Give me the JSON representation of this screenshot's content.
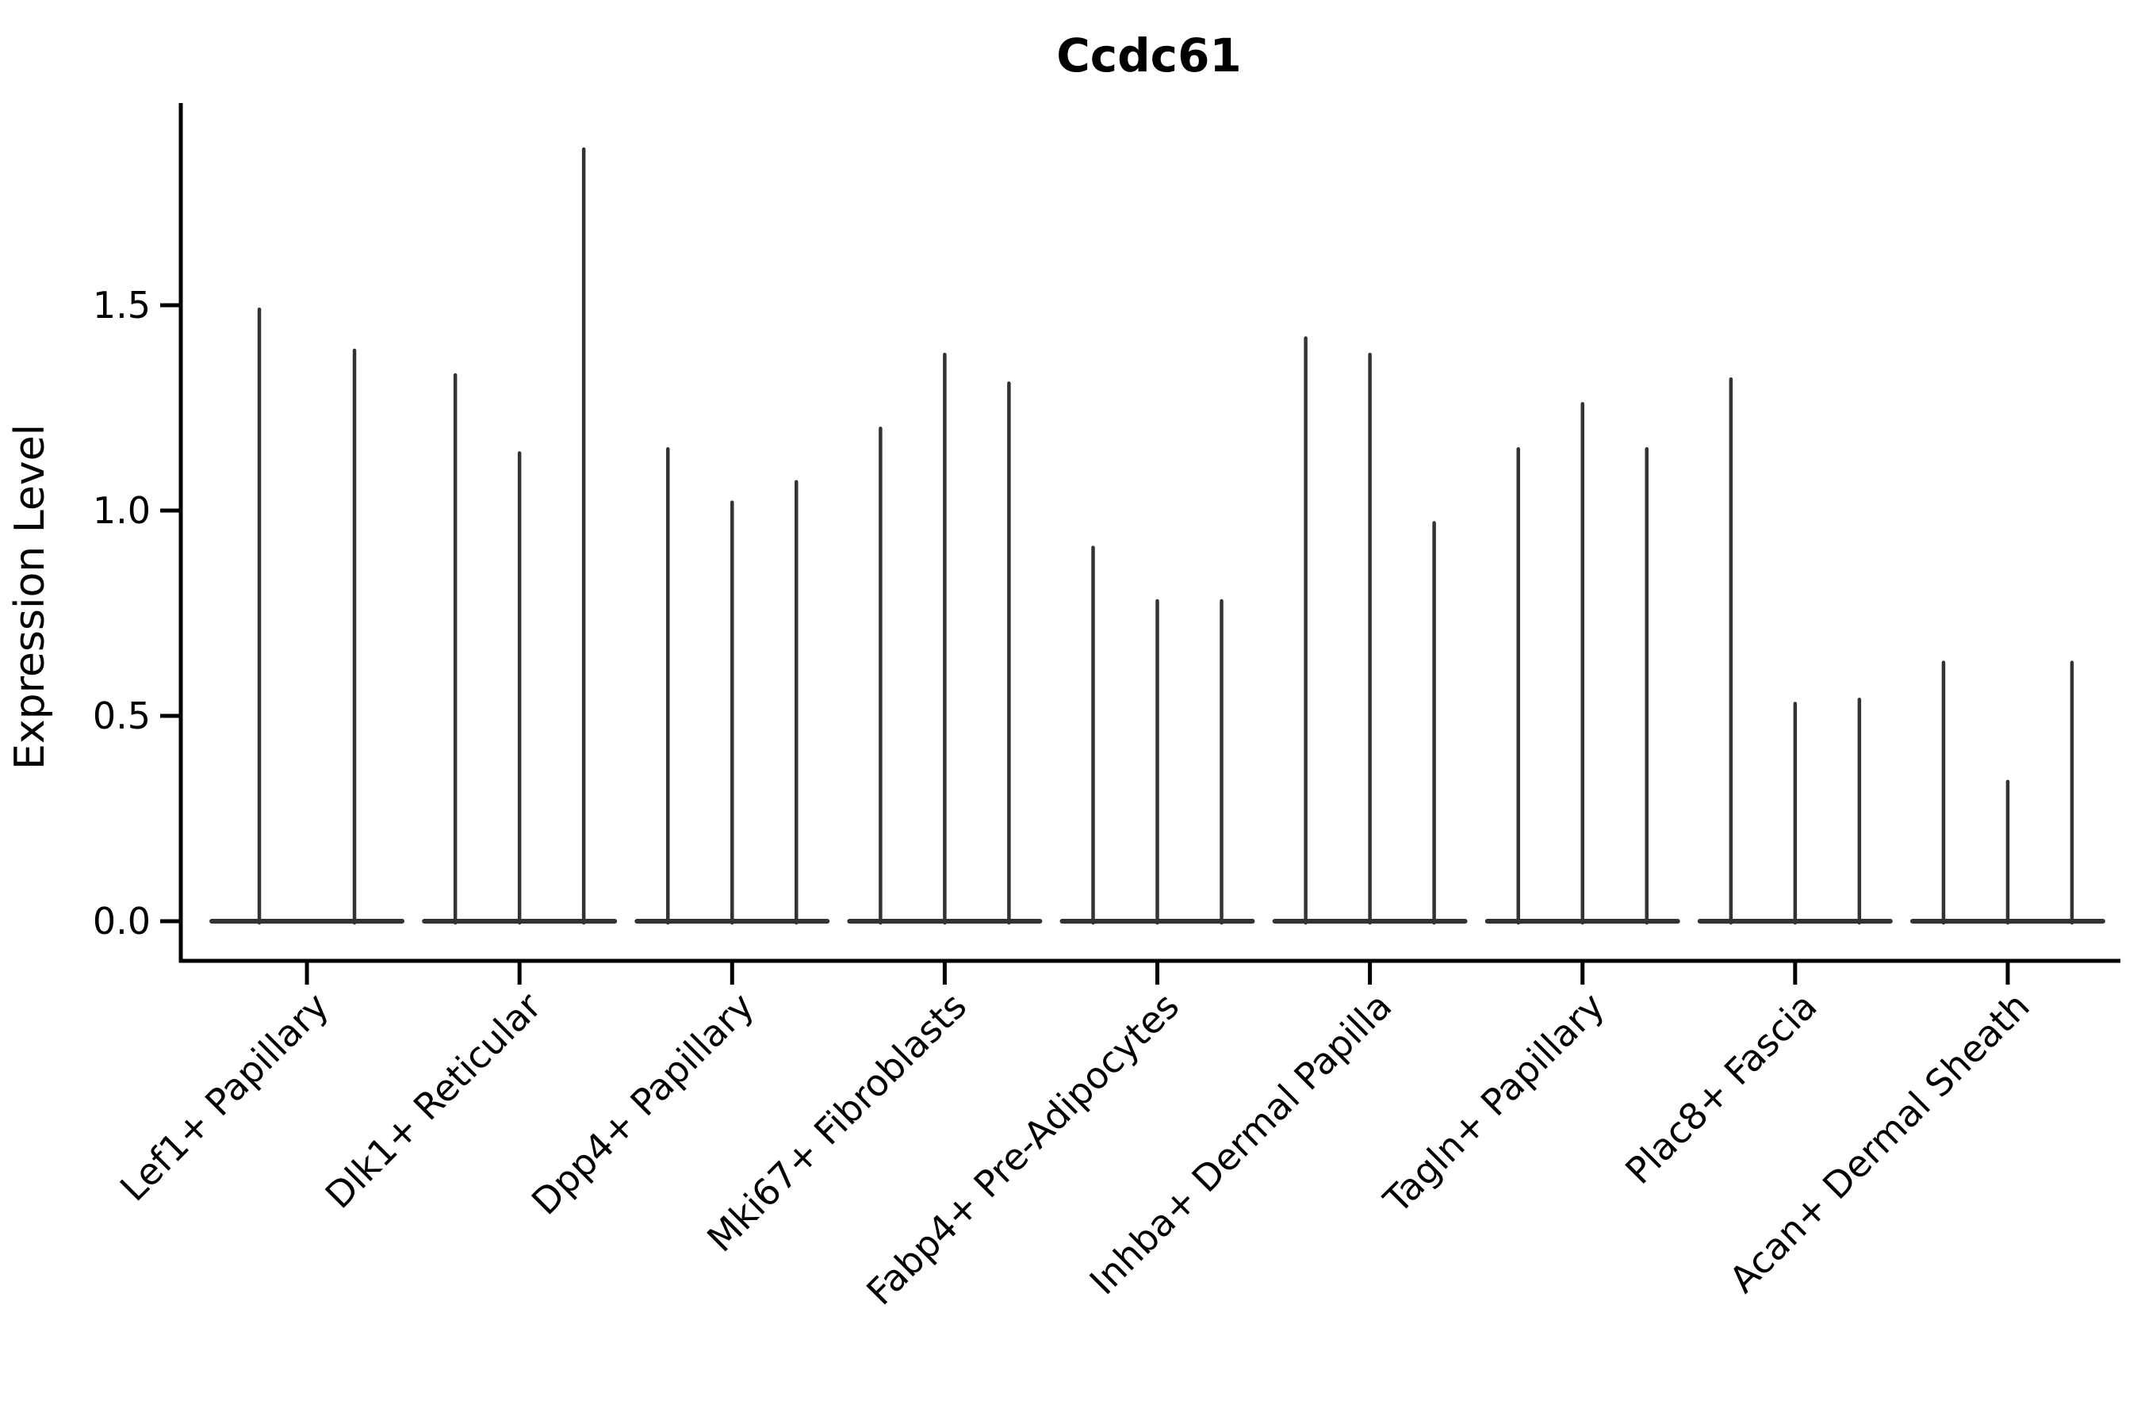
{
  "title": "Ccdc61",
  "colors": {
    "ink": "#000000",
    "violin_stroke": "#333333",
    "background": "#ffffff"
  },
  "chart_data": {
    "type": "violin",
    "title": "Ccdc61",
    "xlabel": "",
    "ylabel": "Expression Level",
    "ylim": [
      0,
      1.96
    ],
    "yticks": [
      0.0,
      0.5,
      1.0,
      1.5
    ],
    "ytick_labels": [
      "0.0",
      "0.5",
      "1.0",
      "1.5"
    ],
    "grid": false,
    "legend_position": "none",
    "description": "Seurat-style violin plot of gene expression; each violin collapses to a flat base at 0 with a single thin spike up to its maximum expression value",
    "categories": [
      "Lef1+ Papillary",
      "Dlk1+ Reticular",
      "Dpp4+ Papillary",
      "Mki67+ Fibroblasts",
      "Fabp4+ Pre-Adipocytes",
      "Inhba+ Dermal Papilla",
      "Tagln+ Papillary",
      "Plac8+ Fascia",
      "Acan+ Dermal Sheath"
    ],
    "series": [
      {
        "category": "Lef1+ Papillary",
        "spike_maxima": [
          1.49,
          1.39
        ]
      },
      {
        "category": "Dlk1+ Reticular",
        "spike_maxima": [
          1.33,
          1.14,
          1.88
        ]
      },
      {
        "category": "Dpp4+ Papillary",
        "spike_maxima": [
          1.15,
          1.02,
          1.07
        ]
      },
      {
        "category": "Mki67+ Fibroblasts",
        "spike_maxima": [
          1.2,
          1.38,
          1.31
        ]
      },
      {
        "category": "Fabp4+ Pre-Adipocytes",
        "spike_maxima": [
          0.91,
          0.78,
          0.78
        ]
      },
      {
        "category": "Inhba+ Dermal Papilla",
        "spike_maxima": [
          1.42,
          1.38,
          0.97
        ]
      },
      {
        "category": "Tagln+ Papillary",
        "spike_maxima": [
          1.15,
          1.26,
          1.15
        ]
      },
      {
        "category": "Plac8+ Fascia",
        "spike_maxima": [
          1.32,
          0.53,
          0.54
        ]
      },
      {
        "category": "Acan+ Dermal Sheath",
        "spike_maxima": [
          0.63,
          0.34,
          0.63
        ]
      }
    ]
  }
}
